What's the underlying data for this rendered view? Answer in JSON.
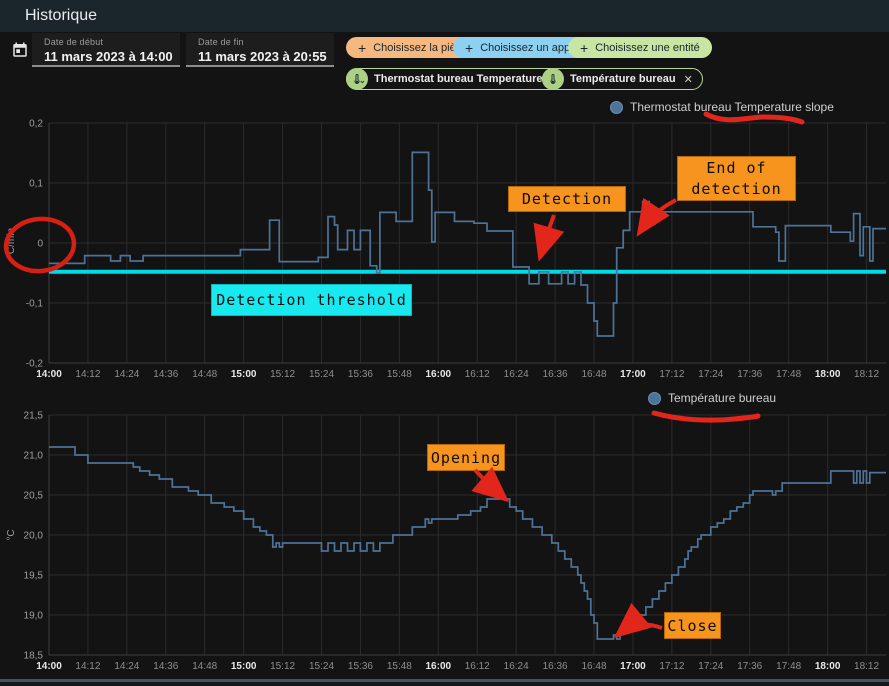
{
  "header": {
    "title": "Historique"
  },
  "toolbar": {
    "date_start": {
      "label": "Date de début",
      "value": "11 mars 2023 à 14:00"
    },
    "date_end": {
      "label": "Date de fin",
      "value": "11 mars 2023 à 20:55"
    },
    "plus_glyph": "+",
    "close_glyph": "✕",
    "chevron_glyph": "⌄",
    "buttons": [
      {
        "label": "Choisissez la pièce",
        "color": "#f6b87e"
      },
      {
        "label": "Choisissez un appareil",
        "color": "#8ed0f2"
      },
      {
        "label": "Choisissez une entité",
        "color": "#c7e5a3"
      }
    ],
    "chips": [
      {
        "label": "Thermostat bureau Temperature slope"
      },
      {
        "label": "Température bureau"
      }
    ]
  },
  "annotations": {
    "detection": {
      "label": "Detection"
    },
    "end_of_detection": {
      "label": "End of\ndetection"
    },
    "detection_threshold": {
      "label": "Detection threshold"
    },
    "opening": {
      "label": "Opening"
    },
    "close": {
      "label": "Close"
    },
    "red_color": "#e2261b",
    "orange_color": "#f7941e",
    "cyan_color": "#17e9ef"
  },
  "chart_data": [
    {
      "type": "line",
      "step": true,
      "title": "Thermostat bureau Temperature slope",
      "xlabel": "",
      "ylabel": "°C/min",
      "x_unit": "minutes after 14:00",
      "xlim": [
        0,
        258
      ],
      "ylim": [
        -0.2,
        0.2
      ],
      "grid": true,
      "legend_position": "top-right",
      "line_color": "#4d7398",
      "xtick_interval": 12,
      "xtick_labels": [
        "14:00",
        "14:12",
        "14:24",
        "14:36",
        "14:48",
        "15:00",
        "15:12",
        "15:24",
        "15:36",
        "15:48",
        "16:00",
        "16:12",
        "16:24",
        "16:36",
        "16:48",
        "17:00",
        "17:12",
        "17:24",
        "17:36",
        "17:48",
        "18:00",
        "18:12"
      ],
      "yticks": [
        {
          "v": 0.2,
          "label": "0,2"
        },
        {
          "v": 0.1,
          "label": "0,1"
        },
        {
          "v": 0,
          "label": "0"
        },
        {
          "v": -0.1,
          "label": "-0,1"
        },
        {
          "v": -0.2,
          "label": "-0,2"
        }
      ],
      "threshold": {
        "value": -0.048,
        "color": "#00dbe8",
        "label": "Detection threshold"
      },
      "series": [
        {
          "name": "Thermostat bureau Temperature slope",
          "points": [
            [
              0,
              -0.034
            ],
            [
              11,
              -0.021
            ],
            [
              19,
              -0.03
            ],
            [
              22,
              -0.021
            ],
            [
              25,
              -0.03
            ],
            [
              29,
              -0.021
            ],
            [
              59,
              -0.011
            ],
            [
              68,
              0.038
            ],
            [
              71,
              -0.031
            ],
            [
              83,
              -0.024
            ],
            [
              86,
              0.044
            ],
            [
              88,
              0.03
            ],
            [
              89,
              -0.011
            ],
            [
              92,
              0.021
            ],
            [
              94,
              -0.011
            ],
            [
              96,
              0.021
            ],
            [
              99,
              -0.038
            ],
            [
              101,
              -0.05
            ],
            [
              102,
              0.051
            ],
            [
              107,
              0.036
            ],
            [
              112,
              0.151
            ],
            [
              117,
              0.088
            ],
            [
              118,
              0.002
            ],
            [
              119,
              0.051
            ],
            [
              125,
              0.036
            ],
            [
              131,
              0.033
            ],
            [
              135,
              0.02
            ],
            [
              143,
              -0.04
            ],
            [
              148,
              -0.068
            ],
            [
              151,
              -0.048
            ],
            [
              154,
              -0.068
            ],
            [
              158,
              -0.048
            ],
            [
              160,
              -0.068
            ],
            [
              162,
              -0.048
            ],
            [
              164,
              -0.07
            ],
            [
              166,
              -0.1
            ],
            [
              168,
              -0.13
            ],
            [
              169,
              -0.155
            ],
            [
              174,
              -0.1
            ],
            [
              175,
              -0.008
            ],
            [
              177,
              0.021
            ],
            [
              179,
              0.052
            ],
            [
              183,
              0.069
            ],
            [
              185,
              0.052
            ],
            [
              205,
              0.052
            ],
            [
              217,
              0.027
            ],
            [
              224,
              0.018
            ],
            [
              225,
              -0.03
            ],
            [
              227,
              0.029
            ],
            [
              241,
              0.018
            ],
            [
              247,
              0.003
            ],
            [
              248,
              0.049
            ],
            [
              250,
              -0.021
            ],
            [
              251,
              0.027
            ],
            [
              253,
              -0.03
            ],
            [
              254,
              0.024
            ]
          ]
        }
      ]
    },
    {
      "type": "line",
      "step": true,
      "title": "Température bureau",
      "xlabel": "",
      "ylabel": "°C",
      "x_unit": "minutes after 14:00",
      "xlim": [
        0,
        258
      ],
      "ylim": [
        18.5,
        21.5
      ],
      "grid": true,
      "legend_position": "top-right",
      "line_color": "#4d7398",
      "xtick_interval": 12,
      "xtick_labels": [
        "14:00",
        "14:12",
        "14:24",
        "14:36",
        "14:48",
        "15:00",
        "15:12",
        "15:24",
        "15:36",
        "15:48",
        "16:00",
        "16:12",
        "16:24",
        "16:36",
        "16:48",
        "17:00",
        "17:12",
        "17:24",
        "17:36",
        "17:48",
        "18:00",
        "18:12"
      ],
      "yticks": [
        {
          "v": 21.5,
          "label": "21,5"
        },
        {
          "v": 21.0,
          "label": "21,0"
        },
        {
          "v": 20.5,
          "label": "20,5"
        },
        {
          "v": 20.0,
          "label": "20,0"
        },
        {
          "v": 19.5,
          "label": "19,5"
        },
        {
          "v": 19.0,
          "label": "19,0"
        },
        {
          "v": 18.5,
          "label": "18,5"
        }
      ],
      "series": [
        {
          "name": "Température bureau",
          "points": [
            [
              0,
              21.1
            ],
            [
              8,
              21.0
            ],
            [
              12,
              20.9
            ],
            [
              26,
              20.85
            ],
            [
              28,
              20.8
            ],
            [
              31,
              20.75
            ],
            [
              34,
              20.7
            ],
            [
              38,
              20.6
            ],
            [
              43,
              20.55
            ],
            [
              46,
              20.5
            ],
            [
              50,
              20.4
            ],
            [
              54,
              20.35
            ],
            [
              57,
              20.3
            ],
            [
              60,
              20.2
            ],
            [
              63,
              20.1
            ],
            [
              65,
              20.05
            ],
            [
              67,
              20.0
            ],
            [
              69,
              19.85
            ],
            [
              70,
              19.9
            ],
            [
              71,
              19.85
            ],
            [
              72,
              19.9
            ],
            [
              84,
              19.8
            ],
            [
              86,
              19.9
            ],
            [
              88,
              19.8
            ],
            [
              90,
              19.9
            ],
            [
              92,
              19.8
            ],
            [
              94,
              19.9
            ],
            [
              96,
              19.8
            ],
            [
              98,
              19.9
            ],
            [
              100,
              19.8
            ],
            [
              102,
              19.9
            ],
            [
              106,
              20.0
            ],
            [
              112,
              20.1
            ],
            [
              116,
              20.2
            ],
            [
              117,
              20.15
            ],
            [
              118,
              20.2
            ],
            [
              126,
              20.25
            ],
            [
              130,
              20.3
            ],
            [
              133,
              20.35
            ],
            [
              135,
              20.45
            ],
            [
              142,
              20.35
            ],
            [
              144,
              20.3
            ],
            [
              146,
              20.2
            ],
            [
              149,
              20.1
            ],
            [
              152,
              20.0
            ],
            [
              155,
              19.9
            ],
            [
              157,
              19.8
            ],
            [
              159,
              19.7
            ],
            [
              161,
              19.6
            ],
            [
              163,
              19.5
            ],
            [
              164,
              19.4
            ],
            [
              165,
              19.3
            ],
            [
              166,
              19.2
            ],
            [
              167,
              19.0
            ],
            [
              168,
              18.9
            ],
            [
              169,
              18.7
            ],
            [
              174,
              18.75
            ],
            [
              175,
              18.7
            ],
            [
              176,
              18.8
            ],
            [
              178,
              18.85
            ],
            [
              180,
              18.9
            ],
            [
              182,
              19.0
            ],
            [
              184,
              19.1
            ],
            [
              186,
              19.2
            ],
            [
              188,
              19.3
            ],
            [
              190,
              19.4
            ],
            [
              192,
              19.5
            ],
            [
              194,
              19.6
            ],
            [
              196,
              19.7
            ],
            [
              197,
              19.8
            ],
            [
              198,
              19.85
            ],
            [
              200,
              19.95
            ],
            [
              201,
              20.0
            ],
            [
              204,
              20.1
            ],
            [
              206,
              20.15
            ],
            [
              208,
              20.2
            ],
            [
              210,
              20.3
            ],
            [
              212,
              20.35
            ],
            [
              214,
              20.4
            ],
            [
              216,
              20.5
            ],
            [
              217,
              20.55
            ],
            [
              223,
              20.5
            ],
            [
              224,
              20.55
            ],
            [
              226,
              20.65
            ],
            [
              241,
              20.8
            ],
            [
              248,
              20.65
            ],
            [
              249,
              20.8
            ],
            [
              250,
              20.65
            ],
            [
              251,
              20.8
            ],
            [
              252,
              20.65
            ],
            [
              253,
              20.78
            ]
          ]
        }
      ]
    }
  ]
}
